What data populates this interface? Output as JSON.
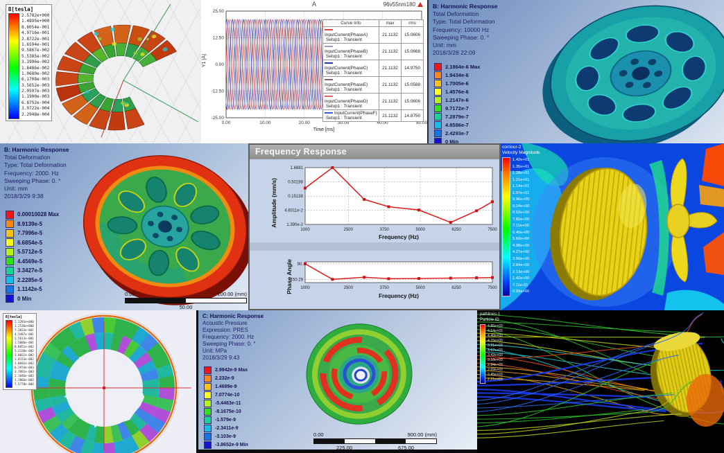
{
  "collage": {
    "panel_b_field": {
      "legend_title": "B[tesla]",
      "legend_values": [
        "2.5782e+000",
        "1.4895e+000",
        "8.6054e-001",
        "4.9716e-001",
        "2.8722e-001",
        "1.6594e-001",
        "9.5867e-002",
        "5.5385e-002",
        "3.1996e-002",
        "1.8486e-002",
        "1.0680e-002",
        "6.1708e-003",
        "3.5652e-003",
        "2.0597e-003",
        "1.1900e-003",
        "6.8752e-004",
        "3.9722e-004",
        "2.2948e-004"
      ]
    },
    "current_plot": {
      "title": "A",
      "corner_label": "96v55nm180",
      "ylabel": "Y1 [A]",
      "xlabel": "Time [ms]",
      "yticks": [
        "25.00",
        "12.50",
        "0.00",
        "-12.50",
        "-25.00"
      ],
      "xticks": [
        "0.00",
        "10.00",
        "20.00",
        "30.00",
        "40.00",
        "50.00"
      ],
      "table": {
        "headers": [
          "Curve Info",
          "max",
          "rms"
        ],
        "setup_line": "Setup1 : Transient",
        "rows": [
          {
            "name": "InputCurrent(PhaseA)",
            "max": "21.1132",
            "rms": "15.0606"
          },
          {
            "name": "InputCurrent(PhaseB)",
            "max": "21.1132",
            "rms": "15.0668"
          },
          {
            "name": "InputCurrent(PhaseC)",
            "max": "21.1132",
            "rms": "14.9750"
          },
          {
            "name": "InputCurrent(PhaseE)",
            "max": "21.1132",
            "rms": "15.0588"
          },
          {
            "name": "InputCurrent(PhaseD)",
            "max": "21.1132",
            "rms": "15.0606"
          },
          {
            "name": "InputCurrent(PhaseF)",
            "max": "21.1132",
            "rms": "14.8750"
          }
        ]
      }
    },
    "harmonic_10000": {
      "info_lines": [
        "B: Harmonic Response",
        "Total Deformation",
        "Type: Total Deformation",
        "Frequency: 10000 Hz",
        "Sweeping Phase: 0. °",
        "Unit: mm",
        "2018/3/28 22:09"
      ],
      "legend_values": [
        "2.1864e-6 Max",
        "1.9434e-6",
        "1.7005e-6",
        "1.4576e-6",
        "1.2147e-6",
        "9.7172e-7",
        "7.2879e-7",
        "4.8586e-7",
        "2.4293e-7",
        "0 Min"
      ]
    },
    "harmonic_2000": {
      "info_lines": [
        "B: Harmonic Response",
        "Total Deformation",
        "Type: Total Deformation",
        "Frequency: 2000. Hz",
        "Sweeping Phase: 0. °",
        "Unit: mm",
        "2018/3/29 9:38"
      ],
      "legend_values": [
        "0.00010028 Max",
        "8.9139e-5",
        "7.7996e-5",
        "6.6854e-5",
        "5.5712e-5",
        "4.4569e-5",
        "3.3427e-5",
        "2.2285e-5",
        "1.1142e-5",
        "0 Min"
      ],
      "scale_bar": {
        "left": "0.00",
        "right": "100.00 (mm)",
        "middle": "50.00"
      }
    },
    "freq_response": {
      "window_title": "Frequency Response",
      "amplitude": {
        "ylabel": "Amplitude (mm/s)",
        "xlabel": "Frequency (Hz)",
        "yticks": [
          "1.6881",
          "0.50198",
          "0.15138",
          "4.6011e-2",
          "1.390e-2"
        ],
        "xticks": [
          "1000",
          "2500",
          "3750",
          "5000",
          "6250",
          "7500"
        ]
      },
      "phase": {
        "ylabel": "Phase Angle",
        "xlabel": "Frequency (Hz)",
        "yticks": [
          "90.",
          "-150.29"
        ],
        "xticks": [
          "1000",
          "2500",
          "3750",
          "5000",
          "6250",
          "7500"
        ]
      }
    },
    "cfd_contour": {
      "legend_title_lines": [
        "contour-2",
        "Velocity Magnitude"
      ],
      "legend_values": [
        "1.42e+01",
        "1.35e+01",
        "1.28e+01",
        "1.21e+01",
        "1.14e+01",
        "1.07e+01",
        "9.96e+00",
        "9.24e+00",
        "8.53e+00",
        "7.82e+00",
        "7.11e+00",
        "6.40e+00",
        "5.69e+00",
        "4.98e+00",
        "4.27e+00",
        "3.56e+00",
        "2.84e+00",
        "2.13e+00",
        "1.42e+00",
        "7.11e-01",
        "0.00e+00"
      ]
    },
    "ring_field": {
      "legend_title": "B[tesla]",
      "legend_values": [
        "2.1283e+000",
        "1.2536e+000",
        "7.3833e-001",
        "4.3487e-001",
        "2.5613e-001",
        "1.5086e-001",
        "8.8851e-002",
        "5.2330e-002",
        "3.0822e-002",
        "1.8153e-002",
        "1.0692e-002",
        "6.2974e-003",
        "3.7091e-003",
        "2.1846e-003",
        "1.2866e-003",
        "7.5778e-004"
      ]
    },
    "acoustic": {
      "info_lines": [
        "C: Harmonic Response",
        "Acoustic Pressure",
        "Expression: PRES",
        "Frequency: 2000. Hz",
        "Sweeping Phase: 0. °",
        "Unit: MPa",
        "2018/3/29 9:43"
      ],
      "legend_values": [
        "2.9942e-9 Max",
        "2.232e-9",
        "1.4699e-9",
        "7.0774e-10",
        "-5.4463e-11",
        "-8.1675e-10",
        "-1.579e-9",
        "-2.3411e-9",
        "-3.103e-9",
        "-3.8652e-9 Min"
      ],
      "scale_bar": {
        "left": "0.00",
        "right": "900.00 (mm)",
        "q1": "225.00",
        "q3": "675.00"
      }
    },
    "pathlines": {
      "legend_title_lines": [
        "pathlines-1",
        "Particle ID"
      ],
      "legend_values": [
        "4.86e+03",
        "4.64e+03",
        "4.40e+03",
        "4.15e+03",
        "3.91e+03",
        "3.67e+03",
        "3.42e+03",
        "3.18e+03",
        "2.94e+03",
        "2.69e+03",
        "2.45e+03",
        "2.21e+03"
      ]
    }
  },
  "chart_data": [
    {
      "type": "line",
      "title": "A",
      "xlabel": "Time [ms]",
      "ylabel": "Y1 [A]",
      "xlim": [
        0,
        50
      ],
      "ylim": [
        -25,
        25
      ],
      "signal": {
        "kind": "sine",
        "amplitude": 21.1132,
        "period_ms": 2.78,
        "phases_deg": [
          0,
          -60,
          -120,
          -180,
          -240,
          -300
        ]
      },
      "series": [
        {
          "name": "InputCurrent(PhaseA)",
          "max": 21.1132,
          "rms": 15.0606
        },
        {
          "name": "InputCurrent(PhaseB)",
          "max": 21.1132,
          "rms": 15.0668
        },
        {
          "name": "InputCurrent(PhaseC)",
          "max": 21.1132,
          "rms": 14.975
        },
        {
          "name": "InputCurrent(PhaseE)",
          "max": 21.1132,
          "rms": 15.0588
        },
        {
          "name": "InputCurrent(PhaseD)",
          "max": 21.1132,
          "rms": 15.0606
        },
        {
          "name": "InputCurrent(PhaseF)",
          "max": 21.1132,
          "rms": 14.875
        }
      ]
    },
    {
      "type": "line",
      "title": "Frequency Response - Amplitude",
      "xlabel": "Frequency (Hz)",
      "ylabel": "Amplitude (mm/s)",
      "yscale": "log",
      "xlim": [
        1000,
        7500
      ],
      "ylim": [
        0.0139,
        1.6881
      ],
      "x": [
        1000,
        1950,
        3050,
        3900,
        4950,
        6050,
        6950,
        7500
      ],
      "y": [
        0.3,
        1.6881,
        0.115,
        0.062,
        0.047,
        0.0165,
        0.044,
        0.095
      ]
    },
    {
      "type": "line",
      "title": "Frequency Response - Phase",
      "xlabel": "Frequency (Hz)",
      "ylabel": "Phase Angle",
      "xlim": [
        1000,
        7500
      ],
      "ylim": [
        -200,
        120
      ],
      "x": [
        1000,
        1950,
        3050,
        3900,
        4950,
        6050,
        6950,
        7500
      ],
      "y": [
        90,
        -150.29,
        -118,
        -140,
        -137,
        -131,
        -126,
        -122
      ]
    }
  ]
}
